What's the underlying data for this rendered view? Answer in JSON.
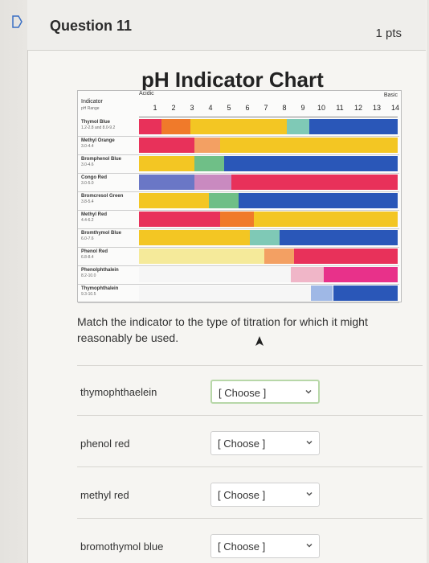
{
  "question": {
    "title": "Question 11",
    "points": "1 pts",
    "text": "Match the indicator to the type of titration for which it might reasonably be used."
  },
  "chart": {
    "title": "pH Indicator Chart",
    "acidic_label": "Acidic",
    "basic_label": "Basic",
    "header_label": "Indicator",
    "header_sub": "pH Range",
    "ticks": [
      "1",
      "2",
      "3",
      "4",
      "5",
      "6",
      "7",
      "8",
      "9",
      "10",
      "11",
      "12",
      "13",
      "14"
    ],
    "indicators": [
      {
        "name": "Thymol Blue",
        "range": "1.2-2.8 and 8.0-9.2",
        "segments": [
          {
            "from": 0,
            "to": 1.2,
            "color": "#e8315a"
          },
          {
            "from": 1.2,
            "to": 2.8,
            "color": "#f07a2a"
          },
          {
            "from": 2.8,
            "to": 8.0,
            "color": "#f3c623"
          },
          {
            "from": 8.0,
            "to": 9.2,
            "color": "#7fc9b6"
          },
          {
            "from": 9.2,
            "to": 14,
            "color": "#2a57b8"
          }
        ]
      },
      {
        "name": "Methyl Orange",
        "range": "3.0-4.4",
        "segments": [
          {
            "from": 0,
            "to": 3.0,
            "color": "#e8315a"
          },
          {
            "from": 3.0,
            "to": 4.4,
            "color": "#f3a063"
          },
          {
            "from": 4.4,
            "to": 14,
            "color": "#f3c623"
          }
        ]
      },
      {
        "name": "Bromphenol Blue",
        "range": "3.0-4.6",
        "segments": [
          {
            "from": 0,
            "to": 3.0,
            "color": "#f3c623"
          },
          {
            "from": 3.0,
            "to": 4.6,
            "color": "#6fbf87"
          },
          {
            "from": 4.6,
            "to": 14,
            "color": "#2a57b8"
          }
        ]
      },
      {
        "name": "Congo Red",
        "range": "3.0-5.0",
        "segments": [
          {
            "from": 0,
            "to": 3.0,
            "color": "#6a77c6"
          },
          {
            "from": 3.0,
            "to": 5.0,
            "color": "#c98ac0"
          },
          {
            "from": 5.0,
            "to": 14,
            "color": "#e8315a"
          }
        ]
      },
      {
        "name": "Bromcresol Green",
        "range": "3.8-5.4",
        "segments": [
          {
            "from": 0,
            "to": 3.8,
            "color": "#f3c623"
          },
          {
            "from": 3.8,
            "to": 5.4,
            "color": "#6fbf87"
          },
          {
            "from": 5.4,
            "to": 14,
            "color": "#2a57b8"
          }
        ]
      },
      {
        "name": "Methyl Red",
        "range": "4.4-6.2",
        "segments": [
          {
            "from": 0,
            "to": 4.4,
            "color": "#e8315a"
          },
          {
            "from": 4.4,
            "to": 6.2,
            "color": "#f07a2a"
          },
          {
            "from": 6.2,
            "to": 14,
            "color": "#f3c623"
          }
        ]
      },
      {
        "name": "Bromthymol Blue",
        "range": "6.0-7.6",
        "segments": [
          {
            "from": 0,
            "to": 6.0,
            "color": "#f3c623"
          },
          {
            "from": 6.0,
            "to": 7.6,
            "color": "#7fc9b6"
          },
          {
            "from": 7.6,
            "to": 14,
            "color": "#2a57b8"
          }
        ]
      },
      {
        "name": "Phenol Red",
        "range": "6.8-8.4",
        "segments": [
          {
            "from": 0,
            "to": 6.8,
            "color": "#f5ea9a"
          },
          {
            "from": 6.8,
            "to": 8.4,
            "color": "#f3a063"
          },
          {
            "from": 8.4,
            "to": 14,
            "color": "#e8315a"
          }
        ]
      },
      {
        "name": "Phenolphthalein",
        "range": "8.2-10.0",
        "segments": [
          {
            "from": 0,
            "to": 8.2,
            "color": "#f6f6f6"
          },
          {
            "from": 8.2,
            "to": 10.0,
            "color": "#f0b6c8"
          },
          {
            "from": 10.0,
            "to": 14,
            "color": "#e8318a"
          }
        ]
      },
      {
        "name": "Thymophthalein",
        "range": "9.3-10.5",
        "segments": [
          {
            "from": 0,
            "to": 9.3,
            "color": "#f6f6f6"
          },
          {
            "from": 9.3,
            "to": 10.5,
            "color": "#9fb8e6"
          },
          {
            "from": 10.5,
            "to": 14,
            "color": "#2a57b8"
          }
        ]
      }
    ]
  },
  "answers": [
    {
      "label": "thymophthaelein",
      "select": "[ Choose ]",
      "active": true
    },
    {
      "label": "phenol red",
      "select": "[ Choose ]",
      "active": false
    },
    {
      "label": "methyl red",
      "select": "[ Choose ]",
      "active": false
    },
    {
      "label": "bromothymol blue",
      "select": "[ Choose ]",
      "active": false
    }
  ],
  "colors": {
    "active_border": "#b7d7a8"
  }
}
